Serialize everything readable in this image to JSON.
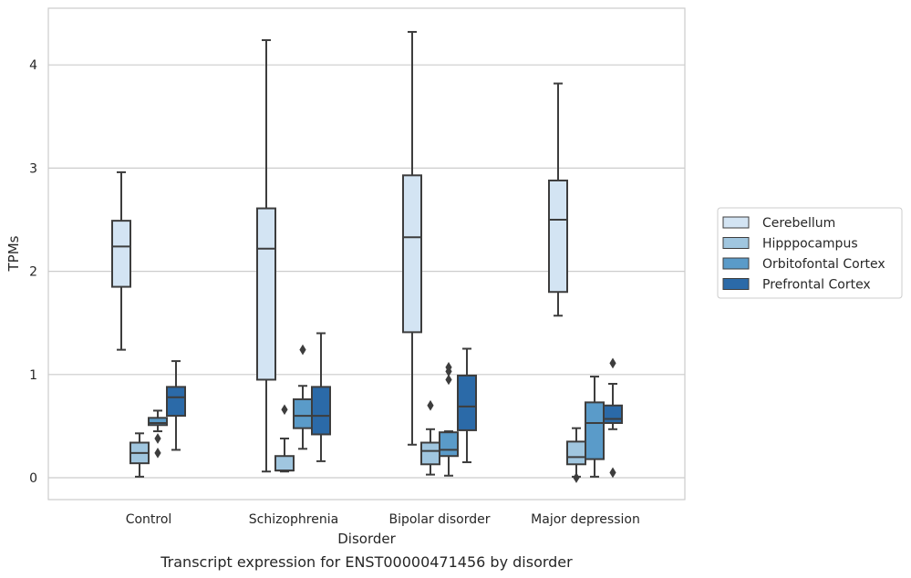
{
  "chart_data": {
    "type": "box",
    "title": "",
    "caption": "Transcript expression for ENST00000471456 by disorder",
    "xlabel": "Disorder",
    "ylabel": "TPMs",
    "ylim": [
      -0.2,
      4.55
    ],
    "yticks": [
      0,
      1,
      2,
      3,
      4
    ],
    "grid": "horizontal",
    "legend_position": "right",
    "categories": [
      "Control",
      "Schizophrenia",
      "Bipolar disorder",
      "Major depression"
    ],
    "series": [
      {
        "name": "Cerebellum",
        "color": "#d3e4f3",
        "boxes": [
          {
            "min": 1.24,
            "q1": 1.85,
            "median": 2.24,
            "q3": 2.49,
            "max": 2.96,
            "outliers": []
          },
          {
            "min": 0.06,
            "q1": 0.95,
            "median": 2.22,
            "q3": 2.61,
            "max": 4.24,
            "outliers": []
          },
          {
            "min": 0.32,
            "q1": 1.41,
            "median": 2.33,
            "q3": 2.93,
            "max": 4.32,
            "outliers": []
          },
          {
            "min": 1.57,
            "q1": 1.8,
            "median": 2.5,
            "q3": 2.88,
            "max": 3.82,
            "outliers": []
          }
        ]
      },
      {
        "name": "Hipppocampus",
        "color": "#a0c6df",
        "boxes": [
          {
            "min": 0.01,
            "q1": 0.14,
            "median": 0.24,
            "q3": 0.34,
            "max": 0.43,
            "outliers": []
          },
          {
            "min": 0.06,
            "q1": 0.07,
            "median": 0.07,
            "q3": 0.21,
            "max": 0.38,
            "outliers": [
              0.66
            ]
          },
          {
            "min": 0.03,
            "q1": 0.13,
            "median": 0.26,
            "q3": 0.34,
            "max": 0.47,
            "outliers": [
              0.7
            ]
          },
          {
            "min": 0.01,
            "q1": 0.13,
            "median": 0.2,
            "q3": 0.35,
            "max": 0.48,
            "outliers": [
              0.0
            ]
          }
        ]
      },
      {
        "name": "Orbitofontal Cortex",
        "color": "#5a9bc9",
        "boxes": [
          {
            "min": 0.45,
            "q1": 0.51,
            "median": 0.53,
            "q3": 0.58,
            "max": 0.65,
            "outliers": [
              0.38,
              0.24
            ]
          },
          {
            "min": 0.28,
            "q1": 0.48,
            "median": 0.6,
            "q3": 0.76,
            "max": 0.89,
            "outliers": [
              1.24
            ]
          },
          {
            "min": 0.02,
            "q1": 0.21,
            "median": 0.27,
            "q3": 0.44,
            "max": 0.45,
            "outliers": [
              0.95,
              1.03,
              1.07
            ]
          },
          {
            "min": 0.01,
            "q1": 0.18,
            "median": 0.53,
            "q3": 0.73,
            "max": 0.98,
            "outliers": []
          }
        ]
      },
      {
        "name": "Prefrontal Cortex",
        "color": "#2b6aa8",
        "boxes": [
          {
            "min": 0.27,
            "q1": 0.6,
            "median": 0.78,
            "q3": 0.88,
            "max": 1.13,
            "outliers": []
          },
          {
            "min": 0.16,
            "q1": 0.42,
            "median": 0.6,
            "q3": 0.88,
            "max": 1.4,
            "outliers": []
          },
          {
            "min": 0.15,
            "q1": 0.46,
            "median": 0.69,
            "q3": 0.99,
            "max": 1.25,
            "outliers": []
          },
          {
            "min": 0.47,
            "q1": 0.53,
            "median": 0.57,
            "q3": 0.7,
            "max": 0.91,
            "outliers": [
              1.11,
              0.05
            ]
          }
        ]
      }
    ]
  }
}
